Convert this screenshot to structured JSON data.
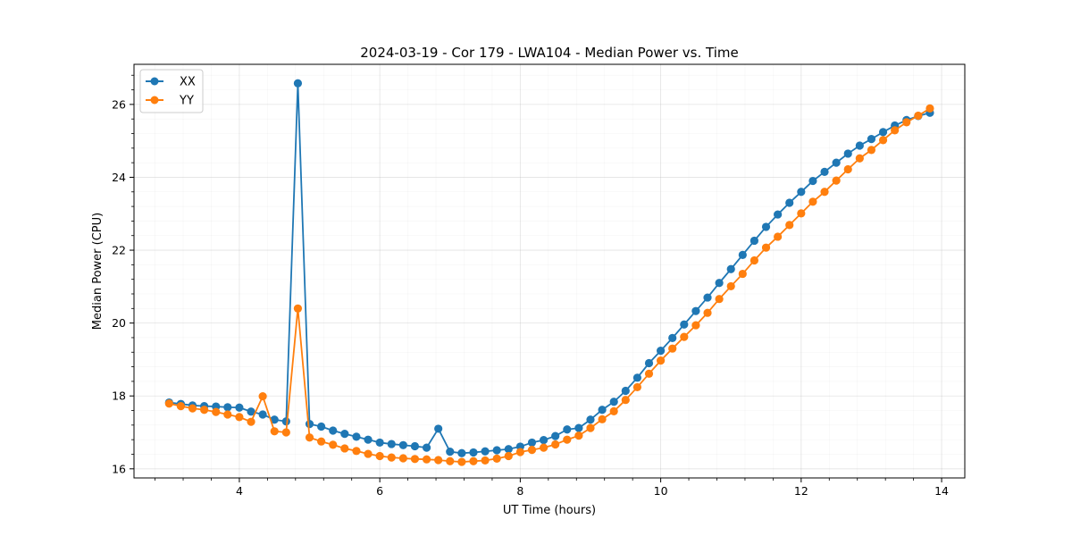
{
  "colors": {
    "XX": "#1f77b4",
    "YY": "#ff7f0e"
  },
  "chart_data": {
    "type": "line",
    "title": "2024-03-19 - Cor 179 - LWA104 - Median Power vs. Time",
    "xlabel": "UT Time (hours)",
    "ylabel": "Median Power (CPU)",
    "xlim": [
      2.5,
      14.33
    ],
    "ylim": [
      15.75,
      27.1
    ],
    "xticks": [
      4,
      6,
      8,
      10,
      12,
      14
    ],
    "yticks": [
      16,
      18,
      20,
      22,
      24,
      26
    ],
    "xtick_labels": [
      "4",
      "6",
      "8",
      "10",
      "12",
      "14"
    ],
    "ytick_labels": [
      "16",
      "18",
      "20",
      "22",
      "24",
      "26"
    ],
    "grid": true,
    "legend_position": "upper-left",
    "x": [
      3.0,
      3.1667,
      3.3333,
      3.5,
      3.6667,
      3.8333,
      4.0,
      4.1667,
      4.3333,
      4.5,
      4.6667,
      4.8333,
      5.0,
      5.1667,
      5.3333,
      5.5,
      5.6667,
      5.8333,
      6.0,
      6.1667,
      6.3333,
      6.5,
      6.6667,
      6.8333,
      7.0,
      7.1667,
      7.3333,
      7.5,
      7.6667,
      7.8333,
      8.0,
      8.1667,
      8.3333,
      8.5,
      8.6667,
      8.8333,
      9.0,
      9.1667,
      9.3333,
      9.5,
      9.6667,
      9.8333,
      10.0,
      10.1667,
      10.3333,
      10.5,
      10.6667,
      10.8333,
      11.0,
      11.1667,
      11.3333,
      11.5,
      11.6667,
      11.8333,
      12.0,
      12.1667,
      12.3333,
      12.5,
      12.6667,
      12.8333,
      13.0,
      13.1667,
      13.3333,
      13.5,
      13.6667,
      13.8333
    ],
    "series": [
      {
        "name": "XX",
        "values": [
          17.82,
          17.78,
          17.74,
          17.72,
          17.71,
          17.69,
          17.68,
          17.57,
          17.49,
          17.35,
          17.3,
          26.58,
          17.23,
          17.16,
          17.05,
          16.96,
          16.88,
          16.8,
          16.72,
          16.68,
          16.65,
          16.62,
          16.58,
          17.1,
          16.47,
          16.43,
          16.45,
          16.48,
          16.51,
          16.54,
          16.61,
          16.72,
          16.79,
          16.9,
          17.08,
          17.12,
          17.35,
          17.62,
          17.84,
          18.14,
          18.5,
          18.9,
          19.24,
          19.59,
          19.96,
          20.33,
          20.7,
          21.1,
          21.48,
          21.87,
          22.26,
          22.64,
          22.98,
          23.3,
          23.6,
          23.9,
          24.15,
          24.4,
          24.65,
          24.87,
          25.05,
          25.24,
          25.42,
          25.57,
          25.68,
          25.77
        ]
      },
      {
        "name": "YY",
        "values": [
          17.79,
          17.72,
          17.66,
          17.62,
          17.56,
          17.49,
          17.42,
          17.29,
          17.99,
          17.03,
          17.0,
          20.4,
          16.86,
          16.75,
          16.66,
          16.56,
          16.49,
          16.41,
          16.35,
          16.31,
          16.29,
          16.27,
          16.26,
          16.24,
          16.21,
          16.19,
          16.21,
          16.23,
          16.28,
          16.35,
          16.46,
          16.52,
          16.58,
          16.67,
          16.8,
          16.91,
          17.12,
          17.36,
          17.58,
          17.89,
          18.24,
          18.61,
          18.97,
          19.3,
          19.62,
          19.94,
          20.28,
          20.66,
          21.01,
          21.35,
          21.72,
          22.07,
          22.37,
          22.69,
          23.01,
          23.33,
          23.6,
          23.91,
          24.22,
          24.52,
          24.75,
          25.02,
          25.29,
          25.51,
          25.69,
          25.89
        ]
      }
    ]
  }
}
